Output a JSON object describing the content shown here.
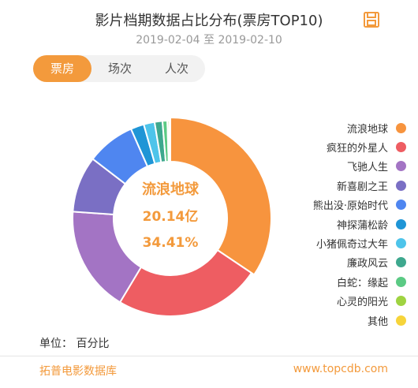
{
  "header": {
    "title": "影片档期数据占比分布(票房TOP10)",
    "date_range": "2019-02-04 至 2019-02-10",
    "save_icon": "save-icon"
  },
  "tabs": [
    {
      "label": "票房",
      "active": true
    },
    {
      "label": "场次",
      "active": false
    },
    {
      "label": "人次",
      "active": false
    }
  ],
  "center": {
    "name": "流浪地球",
    "box_office": "20.14亿",
    "share": "34.41%",
    "color": "#f39a3c"
  },
  "chart_data": {
    "type": "pie",
    "donut": true,
    "categories": [
      "流浪地球",
      "疯狂的外星人",
      "飞驰人生",
      "新喜剧之王",
      "熊出没·原始时代",
      "神探蒲松龄",
      "小猪佩奇过大年",
      "廉政风云",
      "白蛇：缘起",
      "心灵的阳光",
      "其他"
    ],
    "values": [
      34.41,
      24.2,
      17.5,
      9.3,
      8.0,
      2.2,
      1.8,
      1.3,
      0.8,
      0.3,
      0.19
    ],
    "colors": [
      "#f7943e",
      "#ee5d62",
      "#a374c4",
      "#7a6fc4",
      "#4f86f0",
      "#1f95d6",
      "#4ec4ea",
      "#3ea88e",
      "#5bca84",
      "#9fd341",
      "#f6d43a"
    ],
    "highlight_index": 0,
    "legend_position": "right"
  },
  "footer": {
    "unit_label": "单位：",
    "unit_value": "百分比",
    "source": "拓普电影数据库",
    "url": "www.topcdb.com"
  }
}
